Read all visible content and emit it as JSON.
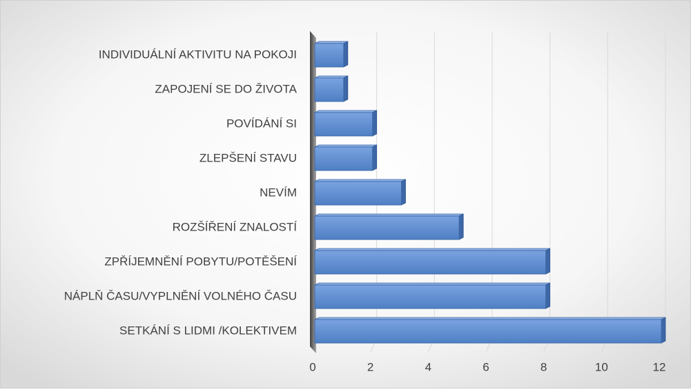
{
  "chart_data": {
    "type": "bar3d",
    "orientation": "horizontal",
    "categories": [
      "INDIVIDUÁLNÍ AKTIVITU NA POKOJI",
      "ZAPOJENÍ SE DO ŽIVOTA",
      "POVÍDÁNÍ SI",
      "ZLEPŠENÍ STAVU",
      "NEVÍM",
      "ROZŠÍŘENÍ ZNALOSTÍ",
      "ZPŘÍJEMNĚNÍ POBYTU/POTĚŠENÍ",
      "NÁPLŇ ČASU/VYPLNĚNÍ VOLNÉHO ČASU",
      "SETKÁNÍ S LIDMI /KOLEKTIVEM"
    ],
    "values": [
      1,
      1,
      2,
      2,
      3,
      5,
      8,
      8,
      12
    ],
    "color": "#5b8ad0",
    "xlim": [
      0,
      12
    ],
    "xticks": [
      0,
      2,
      4,
      6,
      8,
      10,
      12
    ],
    "grid": true
  }
}
